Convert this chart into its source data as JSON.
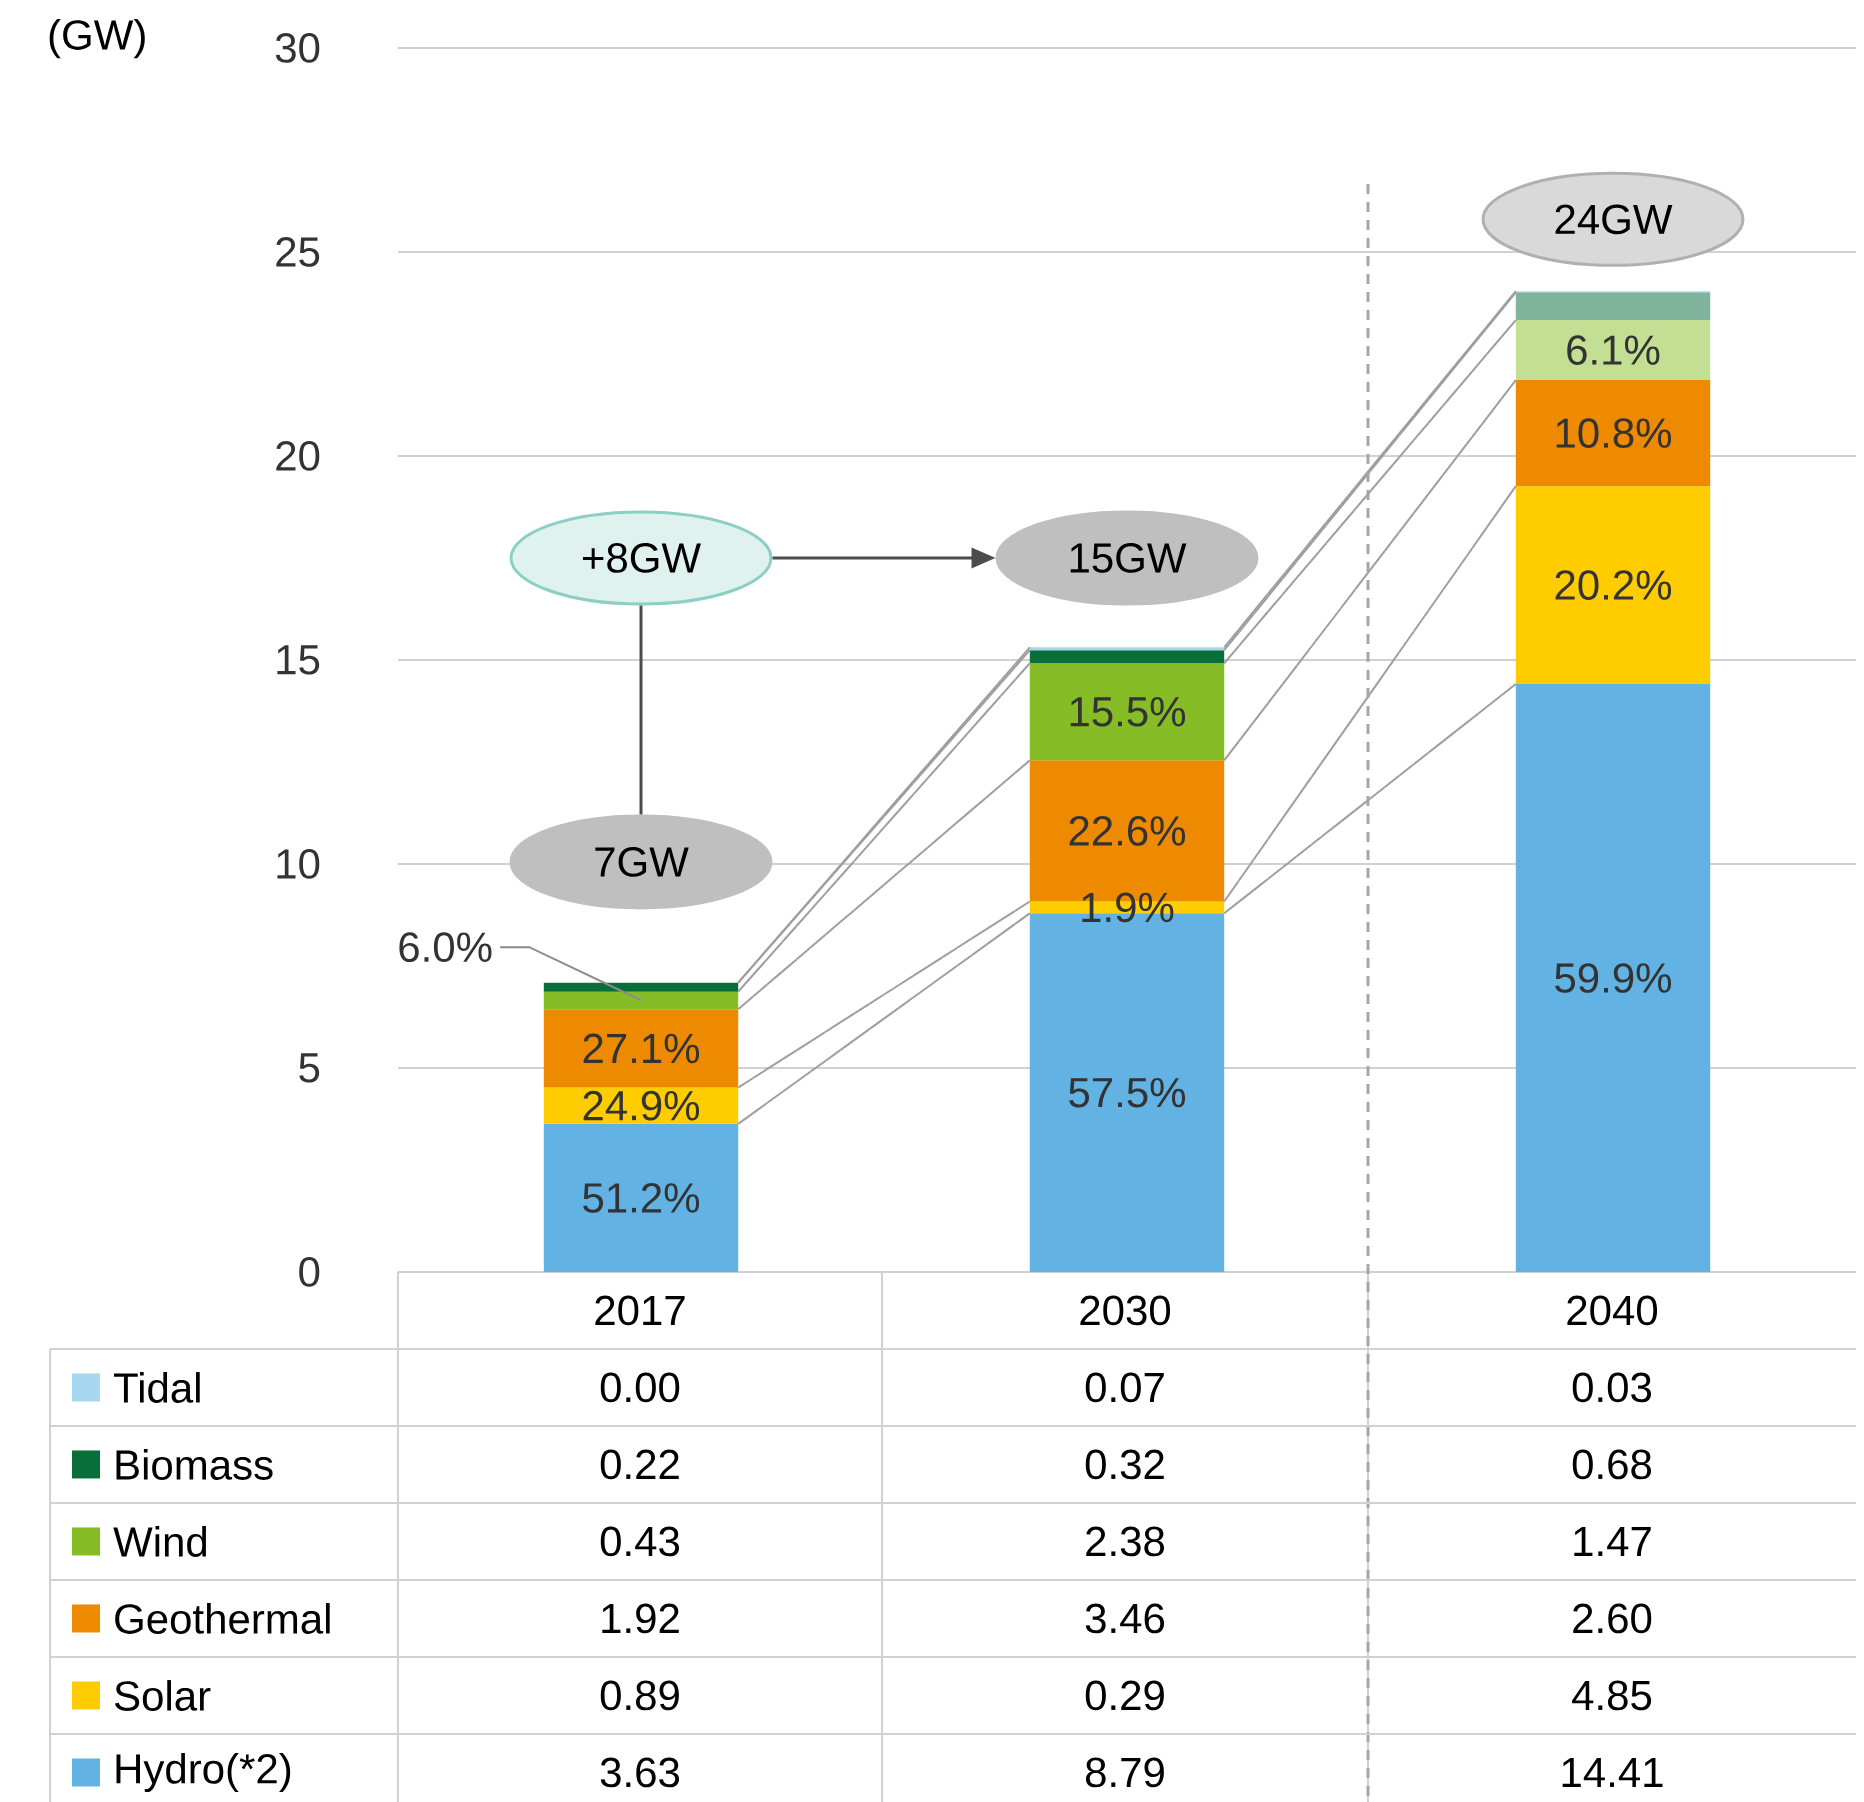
{
  "chart_data": {
    "type": "bar",
    "stacked": true,
    "ylabel": "(GW)",
    "categories": [
      "2017",
      "2030",
      "2040"
    ],
    "ylim": [
      0,
      30
    ],
    "yticks": [
      0,
      5,
      10,
      15,
      20,
      25,
      30
    ],
    "grid": "y",
    "legend": "bottom",
    "data_labels": true,
    "annotations": [
      "+8GW",
      "7GW",
      "15GW",
      "24GW",
      "51.2%",
      "24.9%",
      "27.1%",
      {
        "text": "6.0%",
        "x": "2017",
        "y": 6.66
      },
      "57.5%",
      "1.9%",
      "22.6%",
      "15.5%",
      "59.9%",
      "20.2%",
      "10.8%",
      "6.1%"
    ],
    "series": [
      {
        "name": "Hydro(*2)",
        "color": "#62b3e3",
        "values": [
          3.63,
          8.79,
          14.41
        ],
        "value_labels": [
          "3.63",
          "8.79",
          "14.41"
        ]
      },
      {
        "name": "Solar",
        "color": "#ffcc00",
        "values": [
          0.89,
          0.29,
          4.85
        ],
        "value_labels": [
          "0.89",
          "0.29",
          "4.85"
        ]
      },
      {
        "name": "Geothermal",
        "color": "#ed8a00",
        "values": [
          1.92,
          3.46,
          2.6
        ],
        "value_labels": [
          "1.92",
          "3.46",
          "2.60"
        ]
      },
      {
        "name": "Wind",
        "colors": [
          "#86bc25",
          "#86bc25",
          "#c3df93"
        ],
        "values": [
          0.43,
          2.38,
          1.47
        ],
        "value_labels": [
          "0.43",
          "2.38",
          "1.47"
        ]
      },
      {
        "name": "Biomass",
        "colors": [
          "#0a6e3a",
          "#0a6e3a",
          "#80b49c"
        ],
        "values": [
          0.22,
          0.32,
          0.68
        ],
        "value_labels": [
          "0.22",
          "0.32",
          "0.68"
        ]
      },
      {
        "name": "Tidal",
        "color": "#a8d8ef",
        "values": [
          0.0,
          0.07,
          0.03
        ],
        "value_labels": [
          "0.00",
          "0.07",
          "0.03"
        ]
      }
    ]
  }
}
